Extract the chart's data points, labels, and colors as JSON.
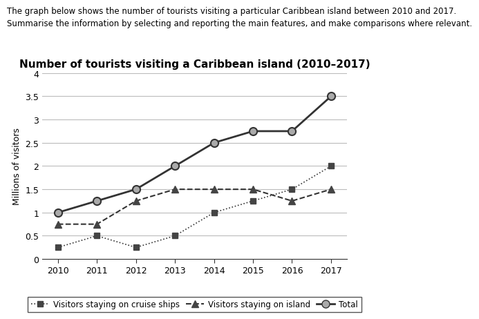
{
  "title": "Number of tourists visiting a Caribbean island (2010–2017)",
  "header_line1": "The graph below shows the number of tourists visiting a particular Caribbean island between 2010 and 2017.",
  "header_line2": "Summarise the information by selecting and reporting the main features, and make comparisons where relevant.",
  "ylabel": "Millions of visitors",
  "years": [
    2010,
    2011,
    2012,
    2013,
    2014,
    2015,
    2016,
    2017
  ],
  "cruise_ships": [
    0.25,
    0.5,
    0.25,
    0.5,
    1.0,
    1.25,
    1.5,
    2.0
  ],
  "on_island": [
    0.75,
    0.75,
    1.25,
    1.5,
    1.5,
    1.5,
    1.25,
    1.5
  ],
  "total": [
    1.0,
    1.25,
    1.5,
    2.0,
    2.5,
    2.75,
    2.75,
    3.5
  ],
  "ylim": [
    0,
    4
  ],
  "yticks": [
    0,
    0.5,
    1.0,
    1.5,
    2.0,
    2.5,
    3.0,
    3.5,
    4.0
  ],
  "legend_cruise": "Visitors staying on cruise ships",
  "legend_island": "Visitors staying on island",
  "legend_total": "Total",
  "background_color": "#ffffff",
  "grid_color": "#bbbbbb",
  "line_color": "#333333",
  "marker_dark": "#444444",
  "marker_grey": "#aaaaaa",
  "title_fontsize": 11,
  "label_fontsize": 9,
  "tick_fontsize": 9,
  "header_fontsize": 8.5,
  "legend_fontsize": 8.5
}
